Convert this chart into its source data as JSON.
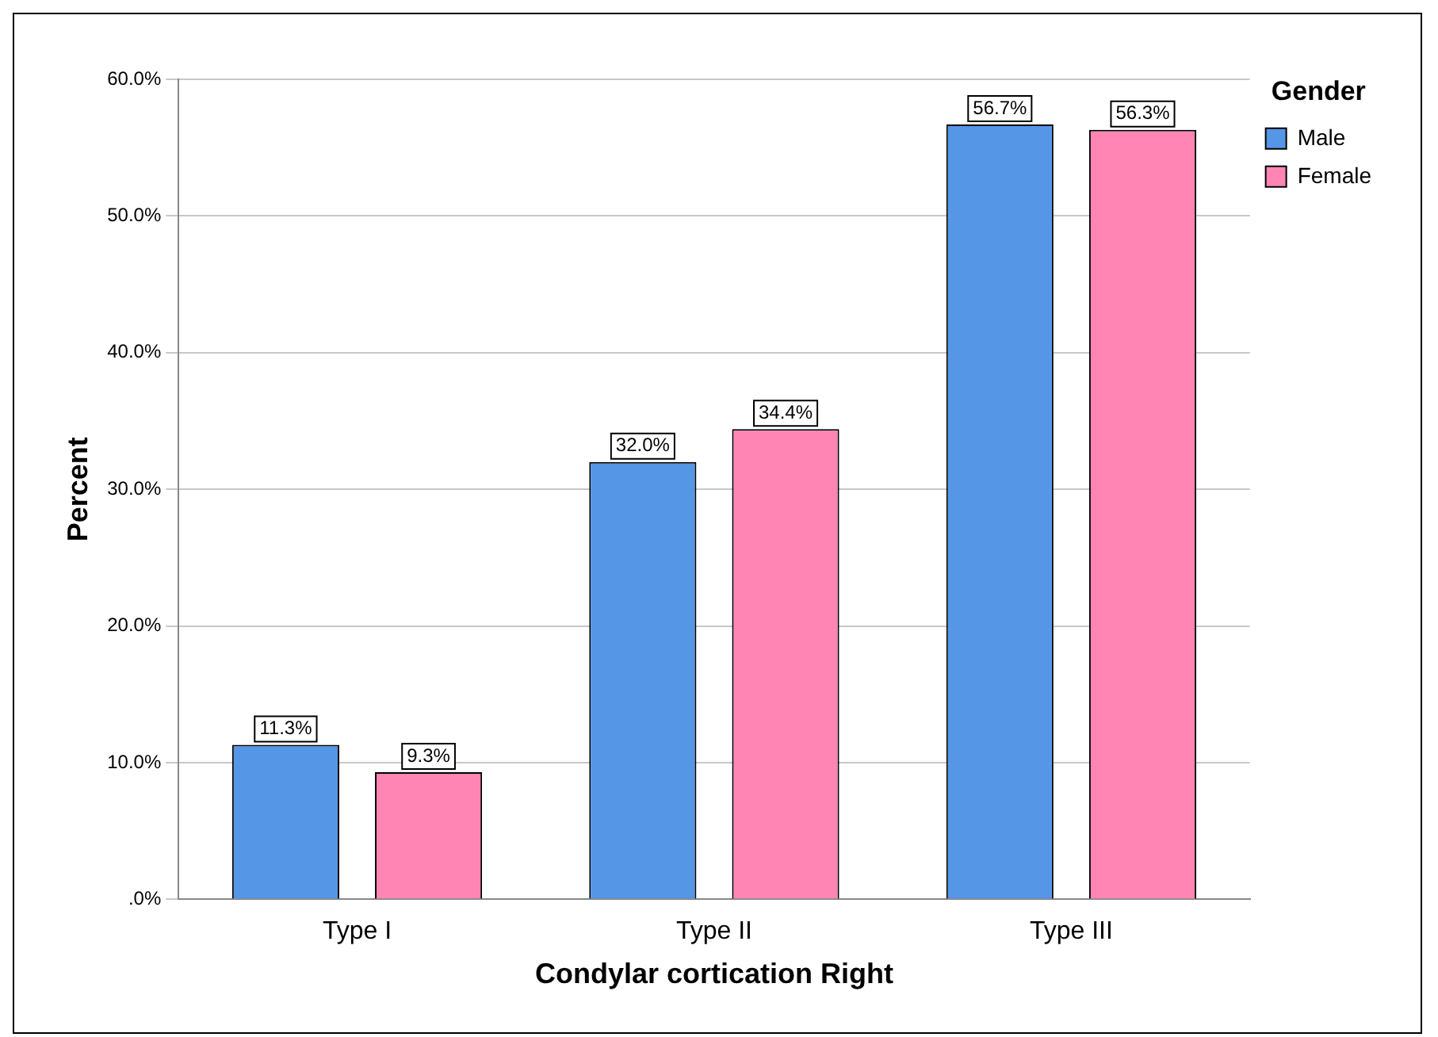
{
  "chart_data": {
    "type": "bar",
    "xlabel": "Condylar cortication Right",
    "ylabel": "Percent",
    "legend_title": "Gender",
    "categories": [
      "Type I",
      "Type II",
      "Type III"
    ],
    "series": [
      {
        "name": "Male",
        "color": "#5596e6",
        "values": [
          11.3,
          32.0,
          56.7
        ],
        "value_labels": [
          "11.3%",
          "32.0%",
          "56.7%"
        ]
      },
      {
        "name": "Female",
        "color": "#ff85b5",
        "values": [
          9.3,
          34.4,
          56.3
        ],
        "value_labels": [
          "9.3%",
          "34.4%",
          "56.3%"
        ]
      }
    ],
    "ylim": [
      0,
      60
    ],
    "yticks": [
      {
        "value": 0,
        "label": ".0%"
      },
      {
        "value": 10,
        "label": "10.0%"
      },
      {
        "value": 20,
        "label": "20.0%"
      },
      {
        "value": 30,
        "label": "30.0%"
      },
      {
        "value": 40,
        "label": "40.0%"
      },
      {
        "value": 50,
        "label": "50.0%"
      },
      {
        "value": 60,
        "label": "60.0%"
      }
    ],
    "grid": "y",
    "legend": "top right"
  }
}
